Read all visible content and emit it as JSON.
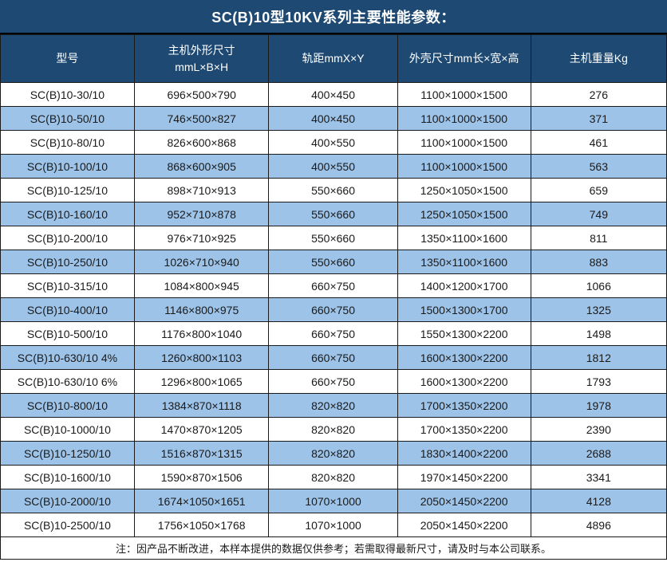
{
  "title": "SC(B)10型10KV系列主要性能参数：",
  "colors": {
    "header_bg": "#1d4972",
    "alt_row_bg": "#9dc3e8",
    "border": "#1a1a1a",
    "header_text": "#ffffff",
    "body_text": "#1a1a1a"
  },
  "table": {
    "columns": [
      {
        "label": "型号",
        "sublabel": ""
      },
      {
        "label": "主机外形尺寸",
        "sublabel": "mmL×B×H"
      },
      {
        "label": "轨距mmX×Y",
        "sublabel": ""
      },
      {
        "label": "外壳尺寸mm长×宽×高",
        "sublabel": ""
      },
      {
        "label": "主机重量Kg",
        "sublabel": ""
      }
    ],
    "rows": [
      [
        "SC(B)10-30/10",
        "696×500×790",
        "400×450",
        "1100×1000×1500",
        "276"
      ],
      [
        "SC(B)10-50/10",
        "746×500×827",
        "400×450",
        "1100×1000×1500",
        "371"
      ],
      [
        "SC(B)10-80/10",
        "826×600×868",
        "400×550",
        "1100×1000×1500",
        "461"
      ],
      [
        "SC(B)10-100/10",
        "868×600×905",
        "400×550",
        "1100×1000×1500",
        "563"
      ],
      [
        "SC(B)10-125/10",
        "898×710×913",
        "550×660",
        "1250×1050×1500",
        "659"
      ],
      [
        "SC(B)10-160/10",
        "952×710×878",
        "550×660",
        "1250×1050×1500",
        "749"
      ],
      [
        "SC(B)10-200/10",
        "976×710×925",
        "550×660",
        "1350×1100×1600",
        "811"
      ],
      [
        "SC(B)10-250/10",
        "1026×710×940",
        "550×660",
        "1350×1100×1600",
        "883"
      ],
      [
        "SC(B)10-315/10",
        "1084×800×945",
        "660×750",
        "1400×1200×1700",
        "1066"
      ],
      [
        "SC(B)10-400/10",
        "1146×800×975",
        "660×750",
        "1500×1300×1700",
        "1325"
      ],
      [
        "SC(B)10-500/10",
        "1176×800×1040",
        "660×750",
        "1550×1300×2200",
        "1498"
      ],
      [
        "SC(B)10-630/10 4%",
        "1260×800×1103",
        "660×750",
        "1600×1300×2200",
        "1812"
      ],
      [
        "SC(B)10-630/10 6%",
        "1296×800×1065",
        "660×750",
        "1600×1300×2200",
        "1793"
      ],
      [
        "SC(B)10-800/10",
        "1384×870×1118",
        "820×820",
        "1700×1350×2200",
        "1978"
      ],
      [
        "SC(B)10-1000/10",
        "1470×870×1205",
        "820×820",
        "1700×1350×2200",
        "2390"
      ],
      [
        "SC(B)10-1250/10",
        "1516×870×1315",
        "820×820",
        "1830×1400×2200",
        "2688"
      ],
      [
        "SC(B)10-1600/10",
        "1590×870×1506",
        "820×820",
        "1970×1450×2200",
        "3341"
      ],
      [
        "SC(B)10-2000/10",
        "1674×1050×1651",
        "1070×1000",
        "2050×1450×2200",
        "4128"
      ],
      [
        "SC(B)10-2500/10",
        "1756×1050×1768",
        "1070×1000",
        "2050×1450×2200",
        "4896"
      ]
    ],
    "note": "注：因产品不断改进，本样本提供的数据仅供参考；若需取得最新尺寸，请及时与本公司联系。"
  }
}
